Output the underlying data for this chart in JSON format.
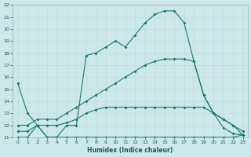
{
  "title": "",
  "xlabel": "Humidex (Indice chaleur)",
  "background_color": "#cce8e8",
  "line_color": "#1a7a6e",
  "xlim": [
    -0.5,
    23.5
  ],
  "ylim": [
    11,
    22
  ],
  "xticks": [
    0,
    1,
    2,
    3,
    4,
    5,
    6,
    7,
    8,
    9,
    10,
    11,
    12,
    13,
    14,
    15,
    16,
    17,
    18,
    19,
    20,
    21,
    22,
    23
  ],
  "yticks": [
    11,
    12,
    13,
    14,
    15,
    16,
    17,
    18,
    19,
    20,
    21,
    22
  ],
  "line1_x": [
    0,
    1,
    2,
    3,
    4,
    5,
    6,
    7,
    8,
    9,
    10,
    11,
    12,
    13,
    14,
    15,
    16,
    17,
    18,
    19,
    20,
    21,
    22,
    23
  ],
  "line1_y": [
    15.5,
    13.0,
    12.0,
    11.0,
    11.0,
    12.0,
    12.0,
    17.8,
    18.0,
    18.5,
    19.0,
    18.5,
    19.5,
    20.5,
    21.2,
    21.5,
    21.5,
    20.5,
    17.3,
    14.5,
    13.0,
    11.8,
    11.3,
    11.2
  ],
  "line2_x": [
    0,
    1,
    2,
    3,
    4,
    5,
    6,
    7,
    8,
    9,
    10,
    11,
    12,
    13,
    14,
    15,
    16,
    17,
    18,
    19,
    20,
    21,
    22,
    23
  ],
  "line2_y": [
    11.0,
    11.0,
    12.0,
    11.0,
    11.0,
    11.0,
    11.0,
    11.0,
    11.0,
    11.0,
    11.0,
    11.0,
    11.0,
    11.0,
    11.0,
    11.0,
    11.0,
    11.0,
    11.0,
    11.0,
    11.0,
    11.0,
    11.0,
    11.2
  ],
  "line3_x": [
    0,
    1,
    2,
    3,
    4,
    5,
    6,
    7,
    8,
    9,
    10,
    11,
    12,
    13,
    14,
    15,
    16,
    17,
    18,
    19,
    20,
    21,
    22,
    23
  ],
  "line3_y": [
    11.5,
    11.5,
    12.0,
    12.0,
    12.0,
    12.2,
    12.5,
    13.0,
    13.3,
    13.5,
    13.5,
    13.5,
    13.5,
    13.5,
    13.5,
    13.5,
    13.5,
    13.5,
    13.5,
    13.5,
    13.0,
    12.5,
    12.0,
    11.5
  ],
  "line4_x": [
    0,
    1,
    2,
    3,
    4,
    5,
    6,
    7,
    8,
    9,
    10,
    11,
    12,
    13,
    14,
    15,
    16,
    17,
    18,
    19,
    20,
    21,
    22,
    23
  ],
  "line4_y": [
    12.0,
    12.0,
    12.5,
    12.5,
    12.5,
    13.0,
    13.5,
    14.0,
    14.5,
    15.0,
    15.5,
    16.0,
    16.5,
    17.0,
    17.3,
    17.5,
    17.5,
    17.5,
    17.3,
    14.5,
    13.0,
    12.5,
    12.0,
    11.2
  ]
}
